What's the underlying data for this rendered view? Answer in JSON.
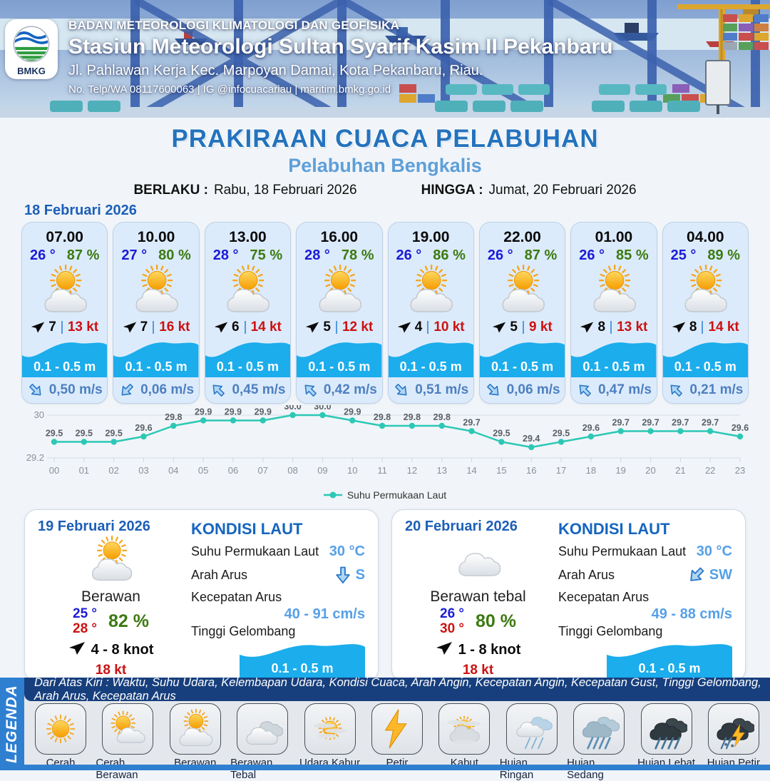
{
  "header": {
    "logo": "BMKG",
    "agency": "BADAN METEOROLOGI KLIMATOLOGI DAN GEOFISIKA",
    "station": "Stasiun Meteorologi Sultan Syarif Kasim II Pekanbaru",
    "address": "Jl. Pahlawan Kerja Kec. Marpoyan Damai, Kota Pekanbaru, Riau.",
    "contact": "No. Telp/WA 08117600063 | IG @infocuacariau | maritim.bmkg.go.id"
  },
  "title": {
    "main": "PRAKIRAAN CUACA PELABUHAN",
    "subtitle": "Pelabuhan Bengkalis",
    "berlaku_label": "BERLAKU :",
    "berlaku_value": "Rabu, 18 Februari 2026",
    "hingga_label": "HINGGA :",
    "hingga_value": "Jumat, 20 Februari 2026"
  },
  "hourly": {
    "date": "18 Februari 2026",
    "condition_icon": "berawan",
    "cards": [
      {
        "time": "07.00",
        "temp": "26 °",
        "humidity": "87 %",
        "wind": "7",
        "gust": "13 kt",
        "wave": "0.1 - 0.5 m",
        "current": "0,50 m/s",
        "current_dir": "se"
      },
      {
        "time": "10.00",
        "temp": "27 °",
        "humidity": "80 %",
        "wind": "7",
        "gust": "16 kt",
        "wave": "0.1 - 0.5 m",
        "current": "0,06 m/s",
        "current_dir": "sw"
      },
      {
        "time": "13.00",
        "temp": "28 °",
        "humidity": "75 %",
        "wind": "6",
        "gust": "14 kt",
        "wave": "0.1 - 0.5 m",
        "current": "0,45 m/s",
        "current_dir": "nw"
      },
      {
        "time": "16.00",
        "temp": "28 °",
        "humidity": "78 %",
        "wind": "5",
        "gust": "12 kt",
        "wave": "0.1 - 0.5 m",
        "current": "0,42 m/s",
        "current_dir": "nw"
      },
      {
        "time": "19.00",
        "temp": "26 °",
        "humidity": "86 %",
        "wind": "4",
        "gust": "10 kt",
        "wave": "0.1 - 0.5 m",
        "current": "0,51 m/s",
        "current_dir": "se"
      },
      {
        "time": "22.00",
        "temp": "26 °",
        "humidity": "87 %",
        "wind": "5",
        "gust": "9 kt",
        "wave": "0.1 - 0.5 m",
        "current": "0,06 m/s",
        "current_dir": "se"
      },
      {
        "time": "01.00",
        "temp": "26 °",
        "humidity": "85 %",
        "wind": "8",
        "gust": "13 kt",
        "wave": "0.1 - 0.5 m",
        "current": "0,47 m/s",
        "current_dir": "nw"
      },
      {
        "time": "04.00",
        "temp": "25 °",
        "humidity": "89 %",
        "wind": "8",
        "gust": "14 kt",
        "wave": "0.1 - 0.5 m",
        "current": "0,21 m/s",
        "current_dir": "nw"
      }
    ]
  },
  "chart_data": {
    "type": "line",
    "title": "",
    "series_name": "Suhu Permukaan Laut",
    "x": [
      "00",
      "01",
      "02",
      "03",
      "04",
      "05",
      "06",
      "07",
      "08",
      "09",
      "10",
      "11",
      "12",
      "13",
      "14",
      "15",
      "16",
      "17",
      "18",
      "19",
      "20",
      "21",
      "22",
      "23"
    ],
    "values": [
      29.5,
      29.5,
      29.5,
      29.6,
      29.8,
      29.9,
      29.9,
      29.9,
      30.0,
      30.0,
      29.9,
      29.8,
      29.8,
      29.8,
      29.7,
      29.5,
      29.4,
      29.5,
      29.6,
      29.7,
      29.7,
      29.7,
      29.7,
      29.6
    ],
    "ylim": [
      29.2,
      30.0
    ],
    "yticks": [
      {
        "value": 30.0,
        "label": "30"
      },
      {
        "value": 29.2,
        "label": "29.2"
      }
    ],
    "grid": true,
    "legend_position": "bottom",
    "line_color": "#2cc8b5"
  },
  "sea_labels": {
    "heading": "KONDISI LAUT",
    "sst": "Suhu Permukaan Laut",
    "arah": "Arah Arus",
    "kecepatan": "Kecepatan Arus",
    "gelombang": "Tinggi Gelombang"
  },
  "days": [
    {
      "date": "19 Februari 2026",
      "icon": "berawan",
      "condition": "Berawan",
      "temp_min": "25 °",
      "temp_max": "28 °",
      "humidity": "82 %",
      "wind_range": "4  - 8 knot",
      "gust": "18 kt",
      "sea": {
        "sst": "30 °C",
        "arah": "S",
        "arah_dir": "s",
        "kecepatan": "40  - 91 cm/s",
        "gelombang": "0.1 - 0.5 m"
      }
    },
    {
      "date": "20 Februari 2026",
      "icon": "cloud",
      "condition": "Berawan tebal",
      "temp_min": "26 °",
      "temp_max": "30 °",
      "humidity": "80 %",
      "wind_range": "1  - 8 knot",
      "gust": "18 kt",
      "sea": {
        "sst": "30 °C",
        "arah": "SW",
        "arah_dir": "sw",
        "kecepatan": "49  - 88 cm/s",
        "gelombang": "0.1 - 0.5 m"
      }
    }
  ],
  "legend": {
    "title": "LEGENDA",
    "description": "Dari Atas Kiri : Waktu, Suhu Udara, Kelembapan Udara, Kondisi Cuaca, Arah Angin, Kecepatan Angin, Kecepatan Gust, Tinggi Gelombang, Arah Arus, Kecepatan Arus",
    "items": [
      {
        "label": "Cerah",
        "icon": "cerah"
      },
      {
        "label": "Cerah Berawan",
        "icon": "cerah-berawan"
      },
      {
        "label": "Berawan",
        "icon": "berawan"
      },
      {
        "label": "Berawan Tebal",
        "icon": "berawan-tebal"
      },
      {
        "label": "Udara Kabur",
        "icon": "udara-kabur"
      },
      {
        "label": "Petir",
        "icon": "petir"
      },
      {
        "label": "Kabut",
        "icon": "kabut"
      },
      {
        "label": "Hujan Ringan",
        "icon": "hujan-ringan"
      },
      {
        "label": "Hujan Sedang",
        "icon": "hujan-sedang"
      },
      {
        "label": "Hujan Lebat",
        "icon": "hujan-lebat"
      },
      {
        "label": "Hujan Petir",
        "icon": "hujan-petir"
      }
    ]
  },
  "colors": {
    "title_blue": "#2473bd",
    "subtitle_blue": "#5e9fd8",
    "date_blue": "#1d5fb8",
    "card_bg": "#dcebfb",
    "wave_blue": "#1badec",
    "temp_blue": "#1b1bd6",
    "humidity_green": "#3c7a11",
    "gust_red": "#cc1111",
    "chart_teal": "#2cc8b5",
    "legend_strip": "#173f7d",
    "legend_side": "#2f7fd1"
  }
}
